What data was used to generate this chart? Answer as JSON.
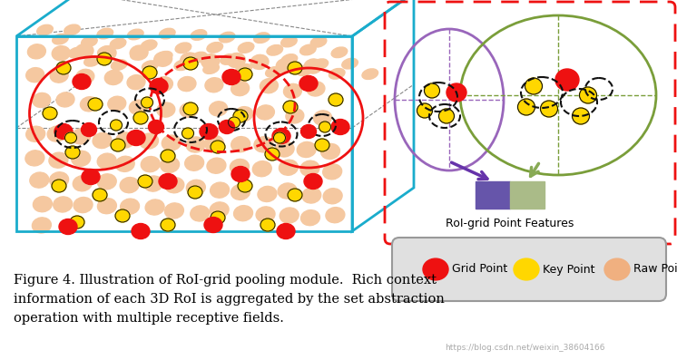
{
  "title_text": "Figure 4. Illustration of RoI-grid pooling module.  Rich context\ninformation of each 3D RoI is aggregated by the set abstraction\noperation with multiple receptive fields.",
  "roi_label": "RoI-grid Point Features",
  "legend_labels": [
    "Grid Point",
    "Key Point",
    "Raw Point"
  ],
  "colors": {
    "red": "#EE1111",
    "yellow": "#FFD700",
    "peach": "#F0B080",
    "peach_light": "#F5C8A0",
    "cyan_box": "#1AACCC",
    "purple_ellipse": "#9966BB",
    "green_ellipse": "#7A9E3A",
    "purple_arrow": "#6633AA",
    "green_arrow": "#88AA55",
    "purple_box": "#6655AA",
    "green_box": "#AABB88",
    "legend_bg": "#E0E0E0",
    "gray": "#888888",
    "black": "#111111",
    "white": "#FFFFFF",
    "dashed_red": "#EE1111"
  },
  "watermark": "https://blog.csdn.net/weixin_38604166",
  "fig_width": 7.46,
  "fig_height": 3.97,
  "dpi": 100
}
